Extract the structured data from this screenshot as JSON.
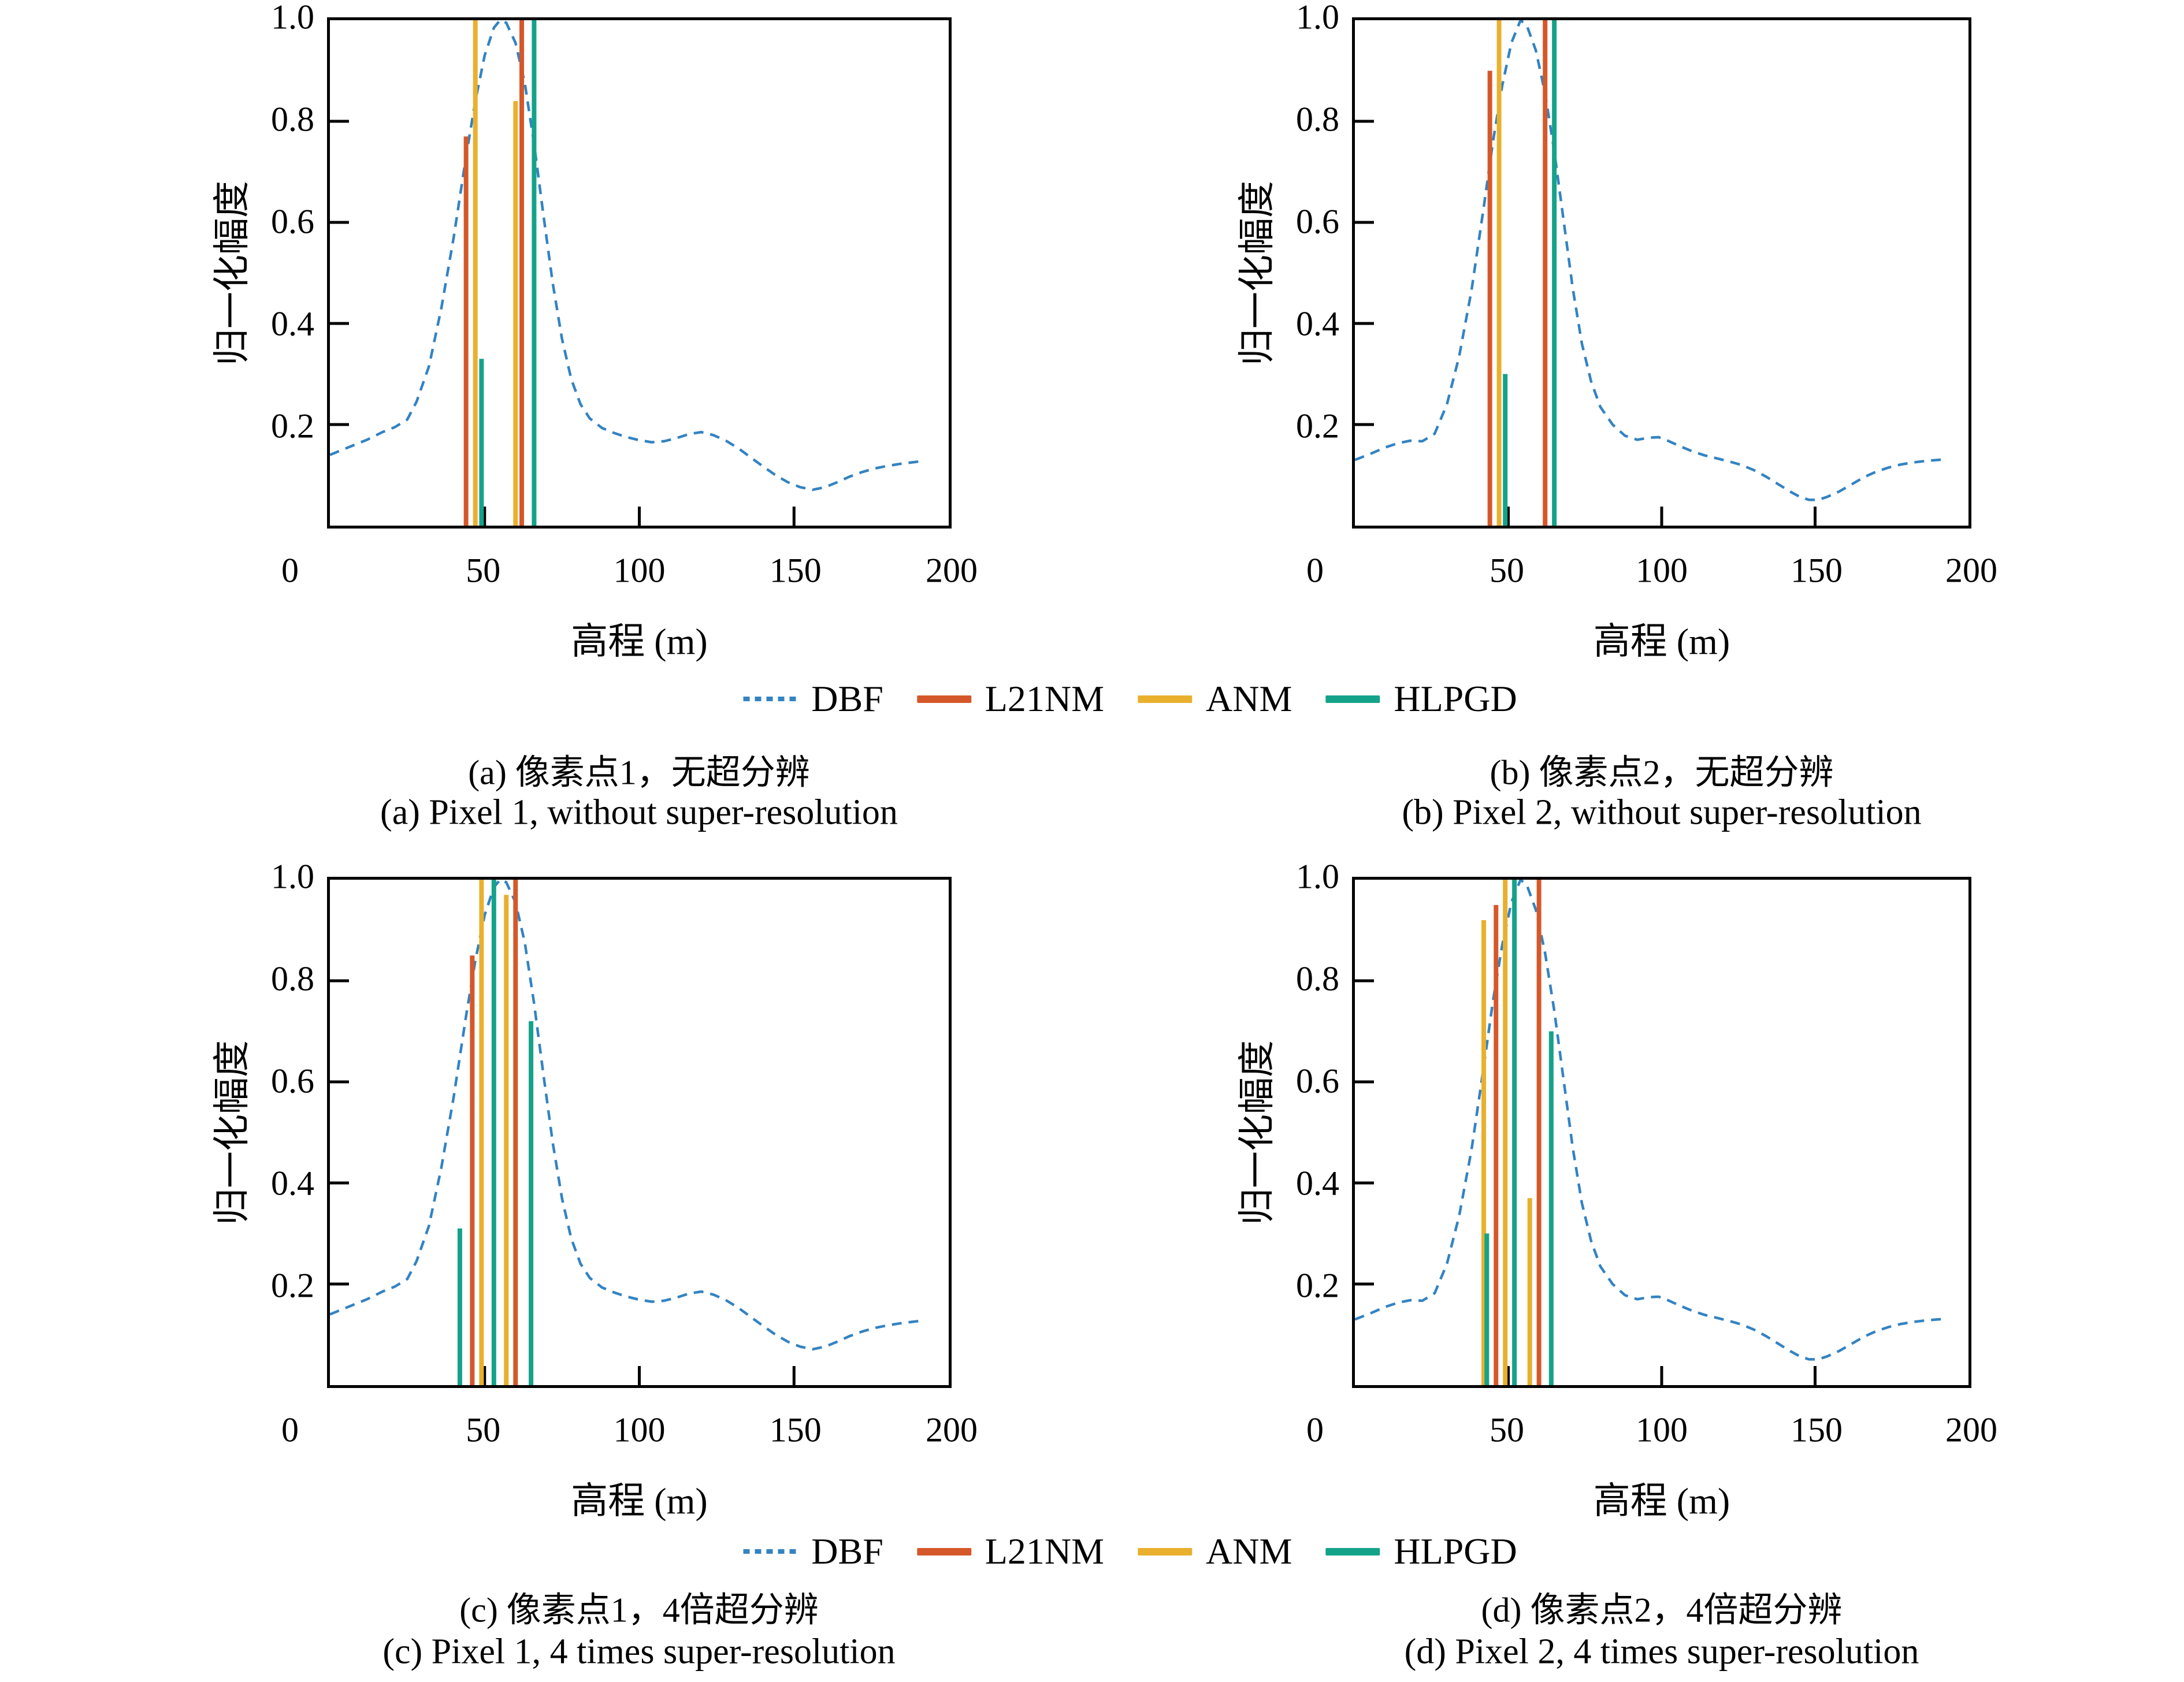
{
  "figure": {
    "background": "#ffffff"
  },
  "legend": {
    "items": [
      {
        "label": "DBF",
        "color": "#3383C2",
        "style": "dashed"
      },
      {
        "label": "L21NM",
        "color": "#D5582A",
        "style": "solid"
      },
      {
        "label": "ANM",
        "color": "#E9B02E",
        "style": "solid"
      },
      {
        "label": "HLPGD",
        "color": "#14A38A",
        "style": "solid"
      }
    ]
  },
  "dbf_curves": {
    "pixel1": [
      [
        0,
        0.14
      ],
      [
        6,
        0.155
      ],
      [
        12,
        0.17
      ],
      [
        17,
        0.185
      ],
      [
        21,
        0.195
      ],
      [
        25,
        0.21
      ],
      [
        28,
        0.245
      ],
      [
        32,
        0.315
      ],
      [
        36,
        0.43
      ],
      [
        40,
        0.57
      ],
      [
        44,
        0.73
      ],
      [
        47,
        0.84
      ],
      [
        50,
        0.93
      ],
      [
        53,
        0.985
      ],
      [
        55,
        1.0
      ],
      [
        57,
        0.995
      ],
      [
        60,
        0.955
      ],
      [
        63,
        0.875
      ],
      [
        66,
        0.755
      ],
      [
        69,
        0.615
      ],
      [
        72,
        0.48
      ],
      [
        75,
        0.37
      ],
      [
        78,
        0.29
      ],
      [
        81,
        0.24
      ],
      [
        84,
        0.212
      ],
      [
        88,
        0.193
      ],
      [
        92,
        0.183
      ],
      [
        96,
        0.175
      ],
      [
        100,
        0.169
      ],
      [
        104,
        0.165
      ],
      [
        108,
        0.167
      ],
      [
        112,
        0.173
      ],
      [
        116,
        0.181
      ],
      [
        120,
        0.185
      ],
      [
        124,
        0.179
      ],
      [
        128,
        0.168
      ],
      [
        132,
        0.153
      ],
      [
        136,
        0.135
      ],
      [
        140,
        0.117
      ],
      [
        144,
        0.1
      ],
      [
        148,
        0.086
      ],
      [
        152,
        0.076
      ],
      [
        156,
        0.071
      ],
      [
        160,
        0.076
      ],
      [
        164,
        0.086
      ],
      [
        168,
        0.097
      ],
      [
        172,
        0.106
      ],
      [
        176,
        0.113
      ],
      [
        180,
        0.118
      ],
      [
        184,
        0.122
      ],
      [
        188,
        0.125
      ],
      [
        192,
        0.128
      ]
    ],
    "pixel2": [
      [
        0,
        0.13
      ],
      [
        5,
        0.142
      ],
      [
        10,
        0.155
      ],
      [
        14,
        0.163
      ],
      [
        18,
        0.168
      ],
      [
        22,
        0.167
      ],
      [
        26,
        0.182
      ],
      [
        30,
        0.24
      ],
      [
        34,
        0.335
      ],
      [
        38,
        0.465
      ],
      [
        42,
        0.63
      ],
      [
        45,
        0.76
      ],
      [
        48,
        0.87
      ],
      [
        51,
        0.955
      ],
      [
        54,
        1.0
      ],
      [
        56,
        0.99
      ],
      [
        59,
        0.94
      ],
      [
        62,
        0.855
      ],
      [
        65,
        0.74
      ],
      [
        68,
        0.605
      ],
      [
        71,
        0.47
      ],
      [
        74,
        0.36
      ],
      [
        77,
        0.285
      ],
      [
        80,
        0.235
      ],
      [
        84,
        0.2
      ],
      [
        88,
        0.178
      ],
      [
        92,
        0.17
      ],
      [
        96,
        0.174
      ],
      [
        99,
        0.175
      ],
      [
        102,
        0.168
      ],
      [
        106,
        0.157
      ],
      [
        110,
        0.147
      ],
      [
        114,
        0.139
      ],
      [
        118,
        0.133
      ],
      [
        122,
        0.127
      ],
      [
        126,
        0.12
      ],
      [
        130,
        0.11
      ],
      [
        134,
        0.097
      ],
      [
        138,
        0.082
      ],
      [
        142,
        0.067
      ],
      [
        145,
        0.057
      ],
      [
        148,
        0.051
      ],
      [
        151,
        0.051
      ],
      [
        154,
        0.057
      ],
      [
        158,
        0.068
      ],
      [
        162,
        0.082
      ],
      [
        166,
        0.096
      ],
      [
        170,
        0.107
      ],
      [
        174,
        0.115
      ],
      [
        178,
        0.121
      ],
      [
        182,
        0.125
      ],
      [
        186,
        0.128
      ],
      [
        190,
        0.13
      ],
      [
        192,
        0.131
      ]
    ]
  },
  "chart_data": [
    {
      "type": "line+stem",
      "caption_zh": "(a) 像素点1，无超分辨",
      "caption_en": "(a) Pixel 1, without super-resolution",
      "xlabel": "高程 (m)",
      "ylabel": "归一化幅度",
      "xlim": [
        0,
        200
      ],
      "ylim": [
        0,
        1
      ],
      "x_ticks": [
        0,
        50,
        100,
        150,
        200
      ],
      "y_ticks": [
        0.2,
        0.4,
        0.6,
        0.8,
        1.0
      ],
      "grid": false,
      "dbf_curve_ref": "pixel1",
      "stems": {
        "L21NM": [
          [
            44,
            0.77
          ],
          [
            62,
            1.0
          ]
        ],
        "ANM": [
          [
            47,
            1.0
          ],
          [
            60,
            0.84
          ]
        ],
        "HLPGD": [
          [
            49,
            0.33
          ],
          [
            66,
            1.0
          ]
        ]
      }
    },
    {
      "type": "line+stem",
      "caption_zh": "(b) 像素点2，无超分辨",
      "caption_en": "(b) Pixel 2, without super-resolution",
      "xlabel": "高程 (m)",
      "ylabel": "归一化幅度",
      "xlim": [
        0,
        200
      ],
      "ylim": [
        0,
        1
      ],
      "x_ticks": [
        0,
        50,
        100,
        150,
        200
      ],
      "y_ticks": [
        0.2,
        0.4,
        0.6,
        0.8,
        1.0
      ],
      "grid": false,
      "dbf_curve_ref": "pixel2",
      "stems": {
        "L21NM": [
          [
            44,
            0.9
          ],
          [
            62,
            1.0
          ]
        ],
        "ANM": [
          [
            47,
            1.0
          ]
        ],
        "HLPGD": [
          [
            49,
            0.3
          ],
          [
            65,
            1.0
          ]
        ]
      }
    },
    {
      "type": "line+stem",
      "caption_zh": "(c) 像素点1，4倍超分辨",
      "caption_en": "(c) Pixel 1, 4 times super-resolution",
      "xlabel": "高程 (m)",
      "ylabel": "归一化幅度",
      "xlim": [
        0,
        200
      ],
      "ylim": [
        0,
        1
      ],
      "x_ticks": [
        0,
        50,
        100,
        150,
        200
      ],
      "y_ticks": [
        0.2,
        0.4,
        0.6,
        0.8,
        1.0
      ],
      "grid": false,
      "dbf_curve_ref": "pixel1",
      "stems": {
        "L21NM": [
          [
            46,
            0.85
          ],
          [
            60,
            1.0
          ]
        ],
        "ANM": [
          [
            49,
            1.0
          ],
          [
            57,
            0.97
          ]
        ],
        "HLPGD": [
          [
            42,
            0.31
          ],
          [
            53,
            1.0
          ],
          [
            65,
            0.72
          ]
        ]
      }
    },
    {
      "type": "line+stem",
      "caption_zh": "(d) 像素点2，4倍超分辨",
      "caption_en": "(d) Pixel 2, 4 times super-resolution",
      "xlabel": "高程 (m)",
      "ylabel": "归一化幅度",
      "xlim": [
        0,
        200
      ],
      "ylim": [
        0,
        1
      ],
      "x_ticks": [
        0,
        50,
        100,
        150,
        200
      ],
      "y_ticks": [
        0.2,
        0.4,
        0.6,
        0.8,
        1.0
      ],
      "grid": false,
      "dbf_curve_ref": "pixel2",
      "stems": {
        "L21NM": [
          [
            46,
            0.95
          ],
          [
            60,
            1.0
          ]
        ],
        "ANM": [
          [
            42,
            0.92
          ],
          [
            49,
            1.0
          ],
          [
            57,
            0.37
          ]
        ],
        "HLPGD": [
          [
            43,
            0.3
          ],
          [
            52,
            1.0
          ],
          [
            64,
            0.7
          ]
        ]
      }
    }
  ]
}
